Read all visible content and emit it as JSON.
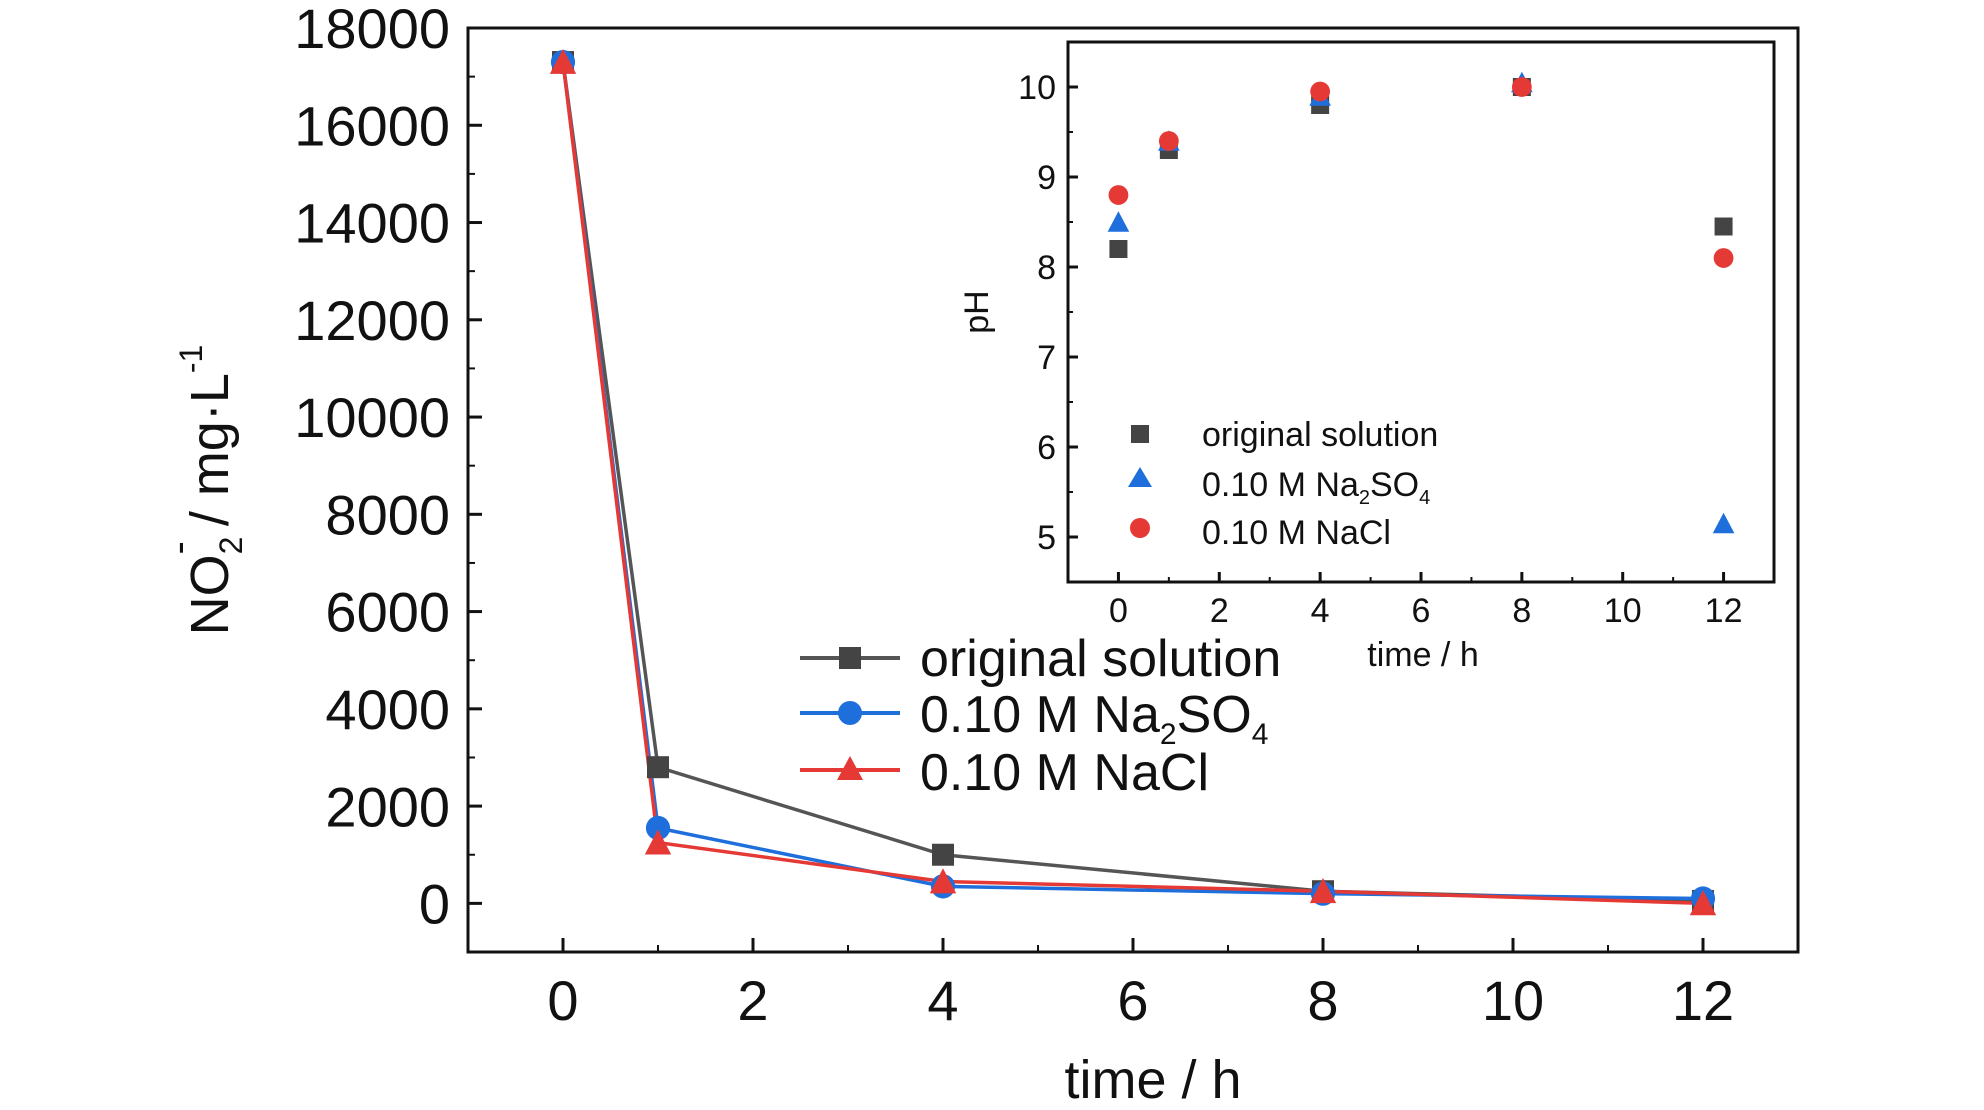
{
  "colors": {
    "original": "#555555",
    "na2so4": "#1e6fdc",
    "nacl": "#e53935",
    "axis": "#111111",
    "original_marker": "#444444"
  },
  "legend": {
    "original": "original solution",
    "na2so4_prefix": "0.10 M Na",
    "na2so4_sub1": "2",
    "na2so4_mid": "SO",
    "na2so4_sub2": "4",
    "nacl": "0.10 M NaCl"
  },
  "chart_data": [
    {
      "type": "line",
      "xlabel": "time / h",
      "ylabel": {
        "base": "NO",
        "sub": "2",
        "sup": "-",
        "unit": " / mg·L",
        "unit_sup": "-1"
      },
      "xlim": [
        -1,
        13
      ],
      "ylim": [
        -1000,
        18000
      ],
      "x_ticks": [
        0,
        2,
        4,
        6,
        8,
        10,
        12
      ],
      "x_tick_labels": [
        "0",
        "2",
        "4",
        "6",
        "8",
        "10",
        "12"
      ],
      "y_ticks": [
        0,
        2000,
        4000,
        6000,
        8000,
        10000,
        12000,
        14000,
        16000,
        18000
      ],
      "y_tick_labels": [
        "0",
        "2000",
        "4000",
        "6000",
        "8000",
        "10000",
        "12000",
        "14000",
        "16000",
        "18000"
      ],
      "x": [
        0,
        1,
        4,
        8,
        12
      ],
      "series": [
        {
          "name": "original solution",
          "marker": "square",
          "values": [
            17300,
            2800,
            1000,
            250,
            50
          ]
        },
        {
          "name": "0.10 M Na2SO4",
          "marker": "circle",
          "values": [
            17300,
            1550,
            350,
            200,
            100
          ]
        },
        {
          "name": "0.10 M NaCl",
          "marker": "triangle",
          "values": [
            17300,
            1250,
            450,
            250,
            0
          ]
        }
      ],
      "legend_position": "center"
    },
    {
      "type": "scatter",
      "xlabel": "time / h",
      "ylabel": "pH",
      "xlim": [
        -1,
        13
      ],
      "ylim": [
        4.5,
        10.5
      ],
      "x_ticks": [
        0,
        2,
        4,
        6,
        8,
        10,
        12
      ],
      "x_tick_labels": [
        "0",
        "2",
        "4",
        "6",
        "8",
        "10",
        "12"
      ],
      "y_ticks": [
        5,
        6,
        7,
        8,
        9,
        10
      ],
      "y_tick_labels": [
        "5",
        "6",
        "7",
        "8",
        "9",
        "10"
      ],
      "x": [
        0,
        1,
        4,
        8,
        12
      ],
      "series": [
        {
          "name": "original solution",
          "marker": "square",
          "values": [
            8.2,
            9.3,
            9.8,
            10.0,
            8.45
          ]
        },
        {
          "name": "0.10 M Na2SO4",
          "marker": "triangle",
          "values": [
            8.5,
            9.4,
            9.9,
            10.05,
            5.15
          ]
        },
        {
          "name": "0.10 M NaCl",
          "marker": "circle",
          "values": [
            8.8,
            9.4,
            9.95,
            10.0,
            8.1
          ]
        }
      ],
      "legend_position": "bottom-left"
    }
  ]
}
